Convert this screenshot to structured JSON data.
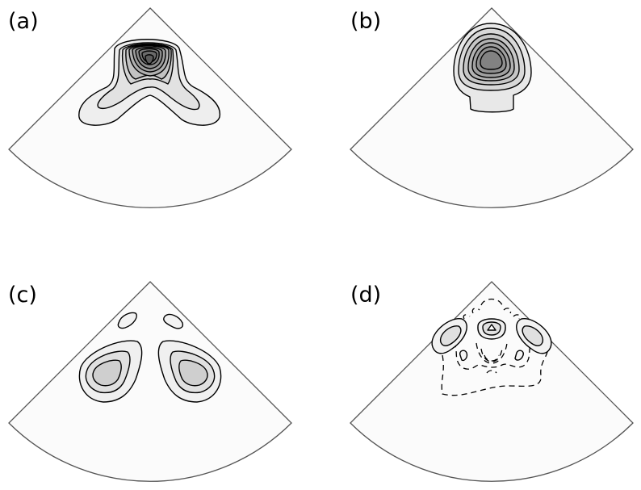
{
  "panels": [
    {
      "id": "a",
      "label": "(a)"
    },
    {
      "id": "b",
      "label": "(b)"
    },
    {
      "id": "c",
      "label": "(c)"
    },
    {
      "id": "d",
      "label": "(d)"
    }
  ],
  "colors": {
    "sector_fill": "#fbfbfb",
    "sector_edge": "#555555",
    "contour_line": "#000000"
  }
}
